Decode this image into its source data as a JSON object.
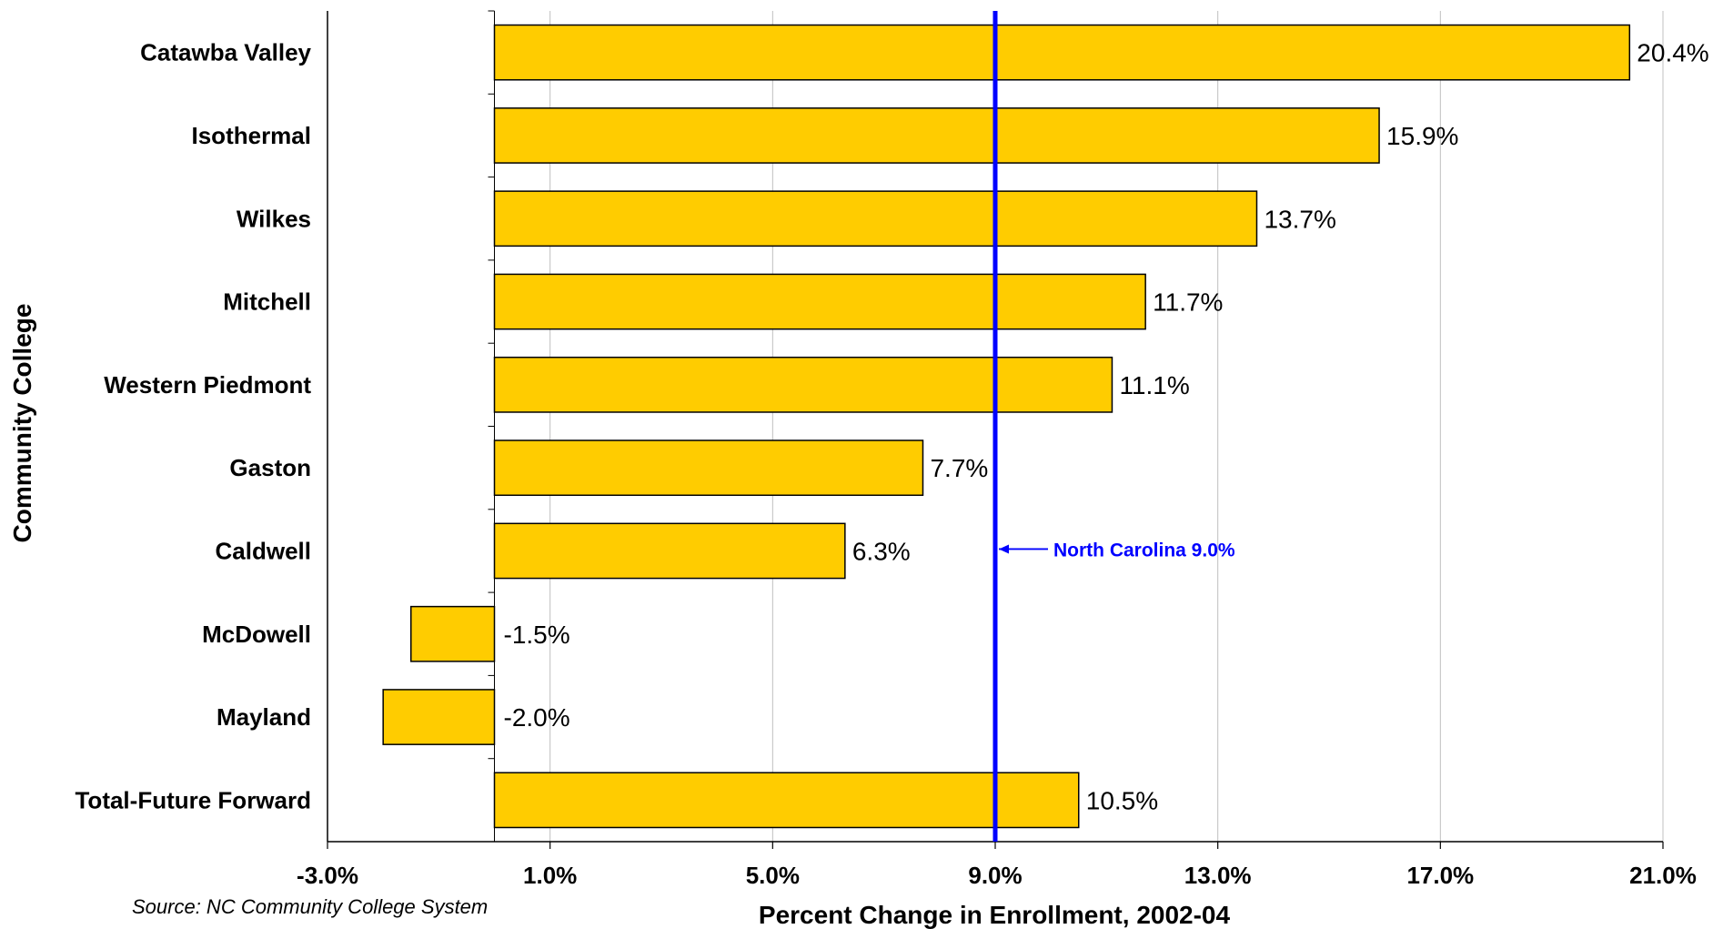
{
  "chart_data": {
    "type": "bar",
    "orientation": "horizontal",
    "categories": [
      "Catawba Valley",
      "Isothermal",
      "Wilkes",
      "Mitchell",
      "Western Piedmont",
      "Gaston",
      "Caldwell",
      "McDowell",
      "Mayland",
      "Total-Future Forward"
    ],
    "values": [
      20.4,
      15.9,
      13.7,
      11.7,
      11.1,
      7.7,
      6.3,
      -1.5,
      -2.0,
      10.5
    ],
    "data_labels": [
      "20.4%",
      "15.9%",
      "13.7%",
      "11.7%",
      "11.1%",
      "7.7%",
      "6.3%",
      "-1.5%",
      "-2.0%",
      "10.5%"
    ],
    "xlabel": "Percent Change in Enrollment, 2002-04",
    "ylabel": "Community College",
    "xlim": [
      -3,
      21
    ],
    "xticks": [
      -3,
      1,
      5,
      9,
      13,
      17,
      21
    ],
    "xtick_labels": [
      "-3.0%",
      "1.0%",
      "5.0%",
      "9.0%",
      "13.0%",
      "17.0%",
      "21.0%"
    ],
    "bar_baseline": 0,
    "grid": "vertical",
    "legend": "none",
    "reference_line": {
      "value": 9.0,
      "label": "North Carolina 9.0%",
      "color": "#0000ff"
    },
    "bar_color": "#ffcc00",
    "bar_edge_color": "#000000",
    "source": "Source:  NC Community College System"
  }
}
